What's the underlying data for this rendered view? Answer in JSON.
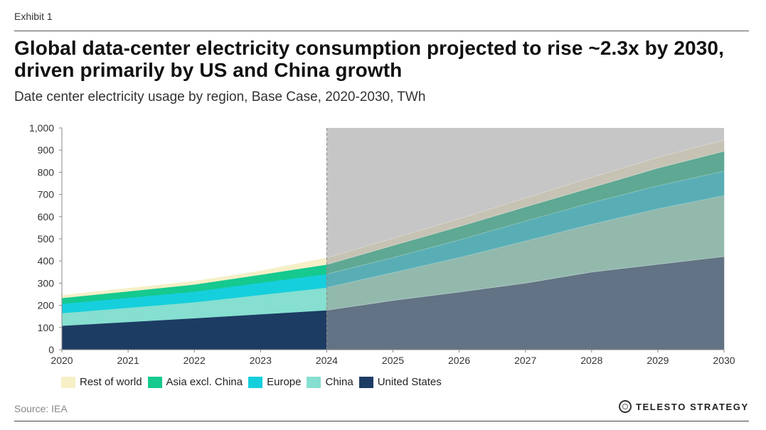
{
  "header": {
    "exhibit": "Exhibit 1",
    "title": "Global data-center electricity consumption projected to rise ~2.3x by 2030, driven primarily by US and China growth",
    "subtitle": "Date center electricity usage by region, Base Case, 2020-2030, TWh"
  },
  "footer": {
    "source": "Source: IEA",
    "brand": "TELESTO STRATEGY"
  },
  "chart_data": {
    "type": "area",
    "stacked": true,
    "x": [
      "2020",
      "2021",
      "2022",
      "2023",
      "2024",
      "2025",
      "2026",
      "2027",
      "2028",
      "2029",
      "2030"
    ],
    "ylim": [
      0,
      1000
    ],
    "yticks": [
      0,
      100,
      200,
      300,
      400,
      500,
      600,
      700,
      800,
      900,
      1000
    ],
    "ytick_labels": [
      "0",
      "100",
      "200",
      "300",
      "400",
      "500",
      "600",
      "700",
      "800",
      "900",
      "1,000"
    ],
    "projection_start": "2024",
    "projection_shading": "#c6c6c6",
    "grid": false,
    "legend_position": "bottom-left",
    "series": [
      {
        "name": "United States",
        "color": "#1d3c63",
        "projected_color": "#627385",
        "values": [
          108,
          125,
          142,
          160,
          178,
          222,
          260,
          300,
          350,
          385,
          420
        ]
      },
      {
        "name": "China",
        "color": "#86dfd0",
        "projected_color": "#93b9ad",
        "values": [
          57,
          64,
          72,
          87,
          102,
          125,
          155,
          190,
          215,
          250,
          275
        ]
      },
      {
        "name": "Europe",
        "color": "#16cfdd",
        "projected_color": "#59aeb5",
        "values": [
          42,
          45,
          48,
          55,
          61,
          68,
          80,
          90,
          98,
          104,
          110
        ]
      },
      {
        "name": "Asia excl. China",
        "color": "#15c98f",
        "projected_color": "#5ea894",
        "values": [
          26,
          29,
          32,
          36,
          43,
          55,
          60,
          64,
          68,
          80,
          90
        ]
      },
      {
        "name": "Rest of world",
        "color": "#f6efc7",
        "projected_color": "#c6c3b5",
        "values": [
          12,
          14,
          15,
          17,
          30,
          32,
          35,
          40,
          46,
          48,
          50
        ]
      }
    ]
  }
}
